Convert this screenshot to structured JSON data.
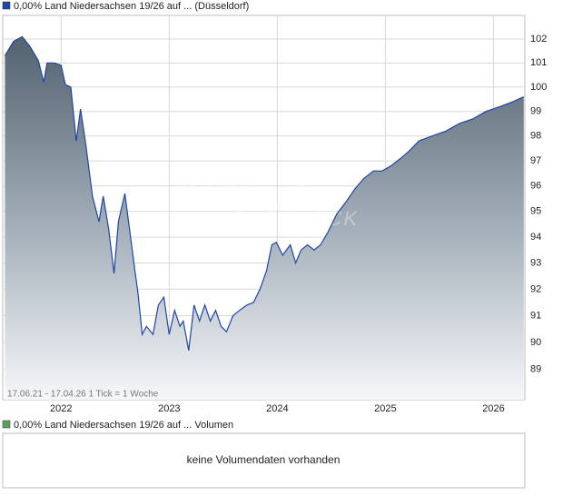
{
  "chart_data": {
    "type": "line",
    "series": [
      {
        "name": "0,00% Land Niedersachsen 19/26 auf ... (Düsseldorf)",
        "color": "#1f45a8",
        "x": [
          2021.48,
          2021.56,
          2021.64,
          2021.71,
          2021.79,
          2021.84,
          2021.87,
          2021.94,
          2022.0,
          2022.04,
          2022.09,
          2022.14,
          2022.18,
          2022.23,
          2022.29,
          2022.35,
          2022.39,
          2022.44,
          2022.49,
          2022.53,
          2022.59,
          2022.63,
          2022.68,
          2022.71,
          2022.75,
          2022.79,
          2022.85,
          2022.9,
          2022.95,
          2023.0,
          2023.05,
          2023.1,
          2023.13,
          2023.18,
          2023.23,
          2023.28,
          2023.33,
          2023.38,
          2023.43,
          2023.48,
          2023.53,
          2023.59,
          2023.65,
          2023.72,
          2023.78,
          2023.84,
          2023.9,
          2023.95,
          2023.99,
          2024.05,
          2024.12,
          2024.17,
          2024.22,
          2024.28,
          2024.34,
          2024.4,
          2024.47,
          2024.55,
          2024.64,
          2024.72,
          2024.8,
          2024.89,
          2024.97,
          2025.05,
          2025.14,
          2025.22,
          2025.31,
          2025.43,
          2025.56,
          2025.68,
          2025.81,
          2025.93,
          2026.06,
          2026.18,
          2026.28
        ],
        "values": [
          101.3,
          101.9,
          102.1,
          101.7,
          101.1,
          100.2,
          101.0,
          101.0,
          100.9,
          100.1,
          100.0,
          97.8,
          99.1,
          97.6,
          95.6,
          94.6,
          95.6,
          94.3,
          92.6,
          94.6,
          95.7,
          94.4,
          92.8,
          91.9,
          90.3,
          90.6,
          90.3,
          91.4,
          91.7,
          90.3,
          91.2,
          90.6,
          90.8,
          89.7,
          91.4,
          90.8,
          91.4,
          90.8,
          91.2,
          90.6,
          90.4,
          91.0,
          91.2,
          91.4,
          91.5,
          92.0,
          92.7,
          93.7,
          93.8,
          93.3,
          93.7,
          93.0,
          93.5,
          93.7,
          93.5,
          93.7,
          94.2,
          94.9,
          95.4,
          95.9,
          96.3,
          96.6,
          96.6,
          96.8,
          97.1,
          97.4,
          97.8,
          98.0,
          98.2,
          98.5,
          98.7,
          99.0,
          99.2,
          99.4,
          99.6
        ]
      }
    ],
    "xlim": [
      2021.46,
      2026.29
    ],
    "xticks": [
      2022,
      2023,
      2024,
      2025,
      2026
    ],
    "ylim": [
      87.9,
      103.0
    ],
    "yticks": [
      89,
      90,
      91,
      92,
      93,
      94,
      95,
      96,
      97,
      98,
      99,
      100,
      101,
      102
    ],
    "log_scale": true,
    "grid": true,
    "footnote": "17.06.21 - 17.04.26    1 Tick = 1 Woche",
    "watermark": [
      "AKTIEN",
      "CHECK"
    ]
  },
  "volume_panel": {
    "legend": "0,00% Land Niedersachsen 19/26 auf ... Volumen",
    "color": "#5aa05a",
    "message": "keine Volumendaten vorhanden"
  }
}
